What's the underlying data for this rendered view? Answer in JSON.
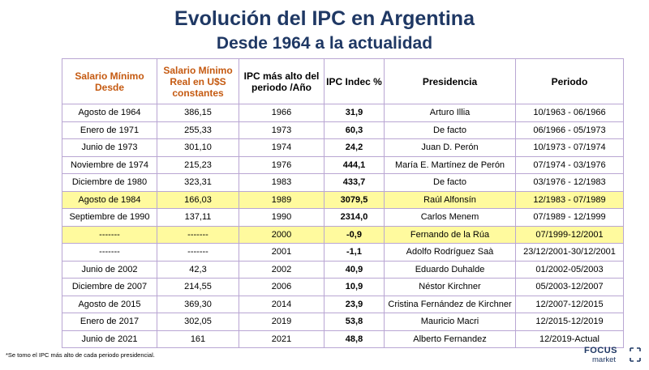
{
  "title": "Evolución del IPC en Argentina",
  "subtitle": "Desde 1964 a la actualidad",
  "headers": [
    "Salario Mínimo Desde",
    "Salario Mínimo Real en U$S constantes",
    "IPC más alto del periodo /Año",
    "IPC Indec %",
    "Presidencia",
    "Periodo"
  ],
  "rows": [
    [
      "Agosto de 1964",
      "386,15",
      "1966",
      "31,9",
      "Arturo Illia",
      "10/1963 - 06/1966"
    ],
    [
      "Enero de 1971",
      "255,33",
      "1973",
      "60,3",
      "De facto",
      "06/1966 - 05/1973"
    ],
    [
      "Junio de 1973",
      "301,10",
      "1974",
      "24,2",
      "Juan D. Perón",
      "10/1973 - 07/1974"
    ],
    [
      "Noviembre de 1974",
      "215,23",
      "1976",
      "444,1",
      "María E. Martínez de Perón",
      "07/1974 - 03/1976"
    ],
    [
      "Diciembre de 1980",
      "323,31",
      "1983",
      "433,7",
      "De facto",
      "03/1976 - 12/1983"
    ],
    [
      "Agosto de 1984",
      "166,03",
      "1989",
      "3079,5",
      "Raúl Alfonsín",
      "12/1983 - 07/1989"
    ],
    [
      "Septiembre de 1990",
      "137,11",
      "1990",
      "2314,0",
      "Carlos Menem",
      "07/1989 - 12/1999"
    ],
    [
      "-------",
      "-------",
      "2000",
      "-0,9",
      "Fernando de la Rúa",
      "07/1999-12/2001"
    ],
    [
      "-------",
      "-------",
      "2001",
      "-1,1",
      "Adolfo Rodríguez Saà",
      "23/12/2001-30/12/2001"
    ],
    [
      "Junio de 2002",
      "42,3",
      "2002",
      "40,9",
      "Eduardo Duhalde",
      "01/2002-05/2003"
    ],
    [
      "Diciembre de 2007",
      "214,55",
      "2006",
      "10,9",
      "Néstor Kirchner",
      "05/2003-12/2007"
    ],
    [
      "Agosto de 2015",
      "369,30",
      "2014",
      "23,9",
      "Cristina Fernández de Kirchner",
      "12/2007-12/2015"
    ],
    [
      "Enero de 2017",
      "302,05",
      "2019",
      "53,8",
      "Mauricio Macri",
      "12/2015-12/2019"
    ],
    [
      "Junio de 2021",
      "161",
      "2021",
      "48,8",
      "Alberto Fernandez",
      "12/2019-Actual"
    ]
  ],
  "footnote": "*Se tomo el IPC más alto de cada periodo presidencial.",
  "logo": {
    "top": "FOCUS",
    "bottom": "market"
  },
  "colors": {
    "title": "#1f3864",
    "header_orange": "#c55a11",
    "highlight": "#fffa9e",
    "negative": "#c00000",
    "max_value": "#2e75b6",
    "border": "#7b57a6"
  }
}
